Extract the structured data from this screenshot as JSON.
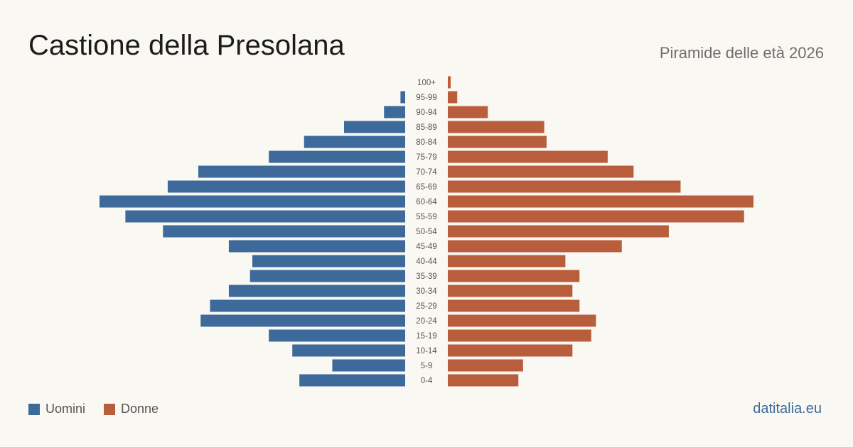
{
  "header": {
    "title": "Castione della Presolana",
    "subtitle": "Piramide delle età 2026"
  },
  "legend": {
    "men_label": "Uomini",
    "women_label": "Donne"
  },
  "footer": {
    "source": "datitalia.eu"
  },
  "colors": {
    "men": "#3d6a9a",
    "women": "#b95e3c"
  },
  "chart_data": {
    "type": "bar",
    "orientation": "horizontal-pyramid",
    "categories": [
      "100+",
      "95-99",
      "90-94",
      "85-89",
      "80-84",
      "75-79",
      "70-74",
      "65-69",
      "60-64",
      "55-59",
      "50-54",
      "45-49",
      "40-44",
      "35-39",
      "30-34",
      "25-29",
      "20-24",
      "15-19",
      "10-14",
      "5-9",
      "0-4"
    ],
    "series": [
      {
        "name": "Uomini",
        "values": [
          0,
          2,
          9,
          26,
          43,
          58,
          88,
          101,
          130,
          119,
          103,
          75,
          65,
          66,
          75,
          83,
          87,
          58,
          48,
          31,
          45
        ]
      },
      {
        "name": "Donne",
        "values": [
          1,
          4,
          17,
          41,
          42,
          68,
          79,
          99,
          130,
          126,
          94,
          74,
          50,
          56,
          53,
          56,
          63,
          61,
          53,
          32,
          30
        ]
      }
    ],
    "legend_position": "bottom-left",
    "grid": false
  }
}
